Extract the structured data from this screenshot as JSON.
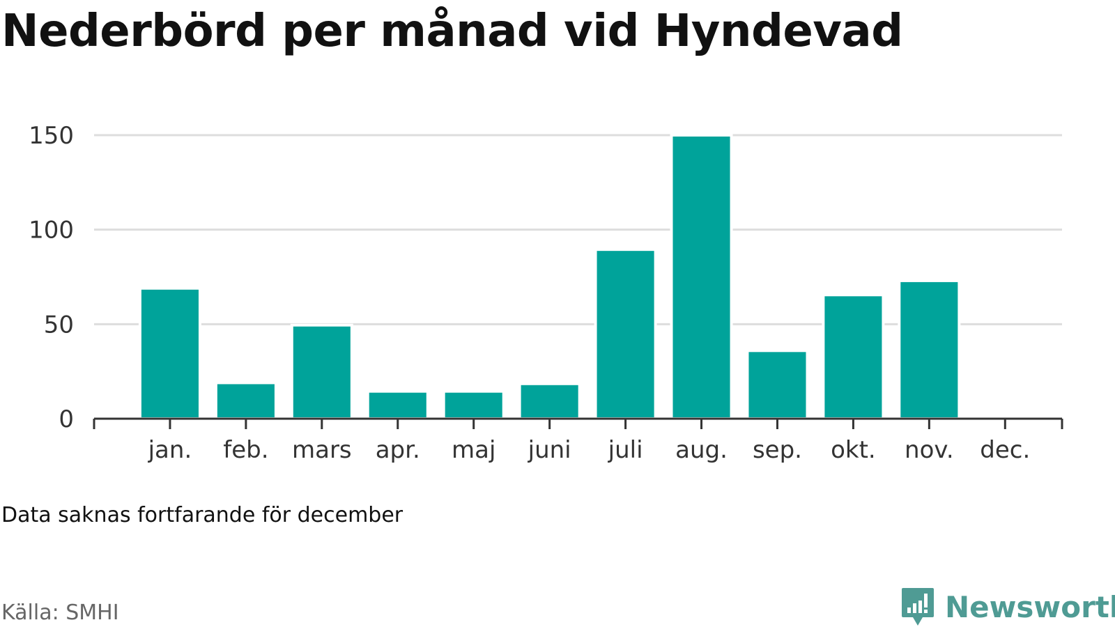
{
  "title": "Nederbörd per månad vid Hyndevad",
  "note": "Data saknas fortfarande för december",
  "source": "Källa: SMHI",
  "brand": {
    "name": "Newsworthy",
    "logo_icon": "newsworthy-chart-bubble-icon"
  },
  "colors": {
    "bar": "#00a39a",
    "brand": "#4f9b94",
    "grid": "#dddddd",
    "axis": "#333333"
  },
  "chart_data": {
    "type": "bar",
    "categories": [
      "jan.",
      "feb.",
      "mars",
      "apr.",
      "maj",
      "juni",
      "juli",
      "aug.",
      "sep.",
      "okt.",
      "nov.",
      "dec."
    ],
    "values": [
      69,
      19,
      49.5,
      14.5,
      14.5,
      18.5,
      89.5,
      150,
      36,
      65.5,
      73,
      null
    ],
    "yticks": [
      0,
      50,
      100,
      150
    ],
    "ylim": [
      0,
      150
    ],
    "title": "Nederbörd per månad vid Hyndevad",
    "xlabel": "",
    "ylabel": "",
    "grid": true
  }
}
